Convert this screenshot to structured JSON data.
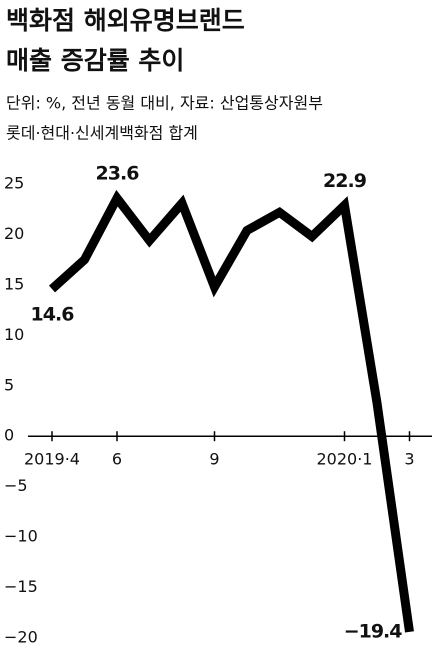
{
  "chart_data": {
    "type": "line",
    "title": [
      "백화점 해외유명브랜드",
      "매출 증감률 추이"
    ],
    "subtitle": [
      "단위: %, 전년 동월 대비, 자료: 산업통상자원부",
      "롯데·현대·신세계백화점 합계"
    ],
    "categories": [
      "2019·4",
      null,
      "6",
      null,
      null,
      "9",
      null,
      null,
      null,
      "2020·1",
      null,
      "3"
    ],
    "series": [
      {
        "name": null,
        "color": "#000000",
        "values": [
          14.6,
          17.5,
          23.6,
          19.4,
          23.1,
          14.8,
          20.4,
          22.2,
          19.8,
          22.9,
          3.3,
          -19.4
        ],
        "value_labels": [
          "14.6",
          null,
          "23.6",
          null,
          null,
          null,
          null,
          null,
          null,
          "22.9",
          null,
          "−19.4"
        ]
      }
    ],
    "ylim": [
      -21,
      26
    ],
    "yticks": [
      25,
      20,
      15,
      10,
      5,
      0,
      {
        "value": -5,
        "label": "−5"
      },
      {
        "value": -10,
        "label": "−10"
      },
      {
        "value": -15,
        "label": "−15"
      },
      {
        "value": -20,
        "label": "−20"
      }
    ],
    "grid": false
  }
}
